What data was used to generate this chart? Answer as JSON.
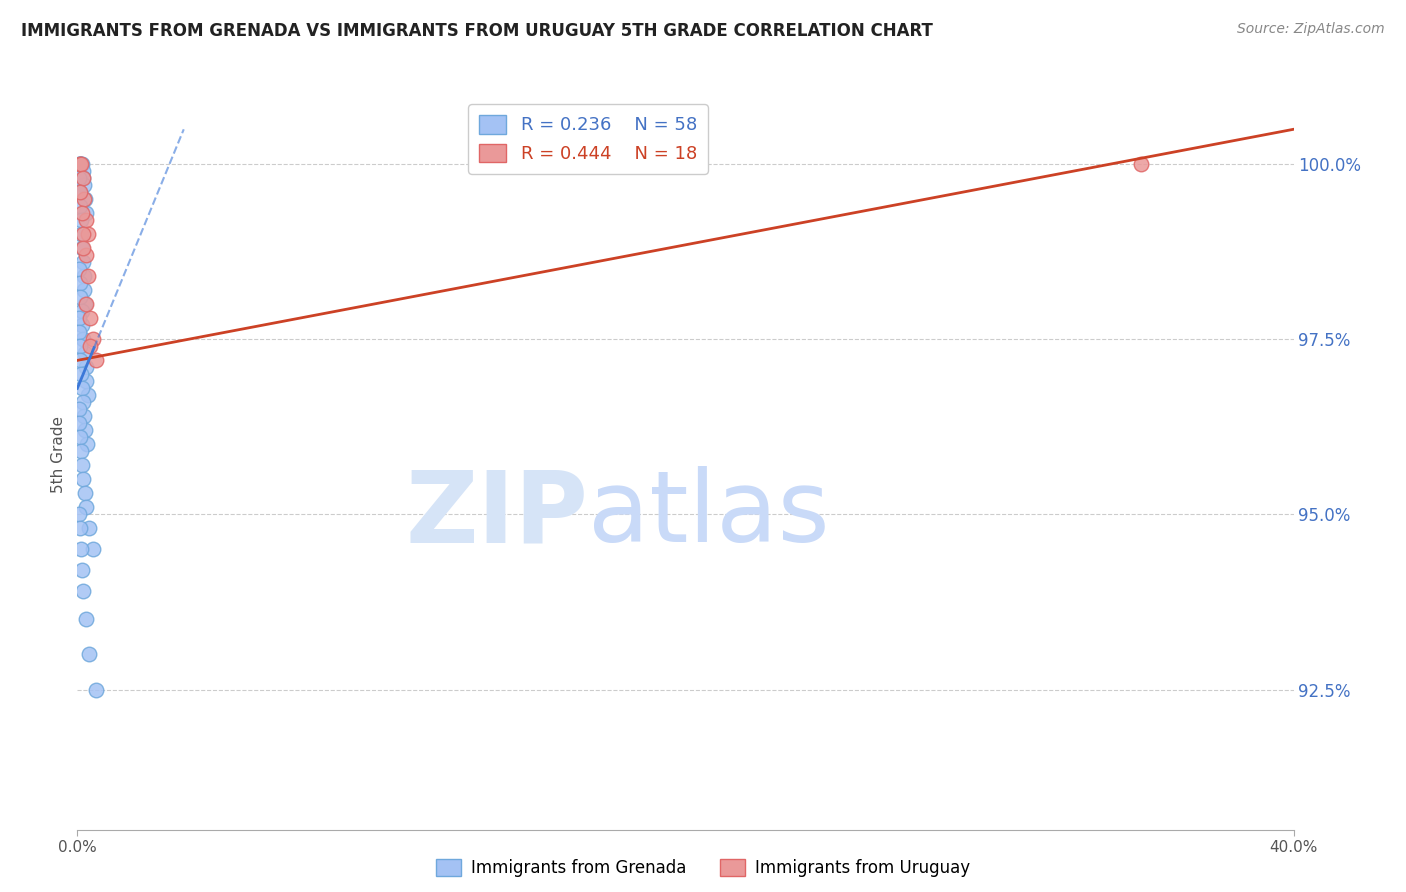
{
  "title": "IMMIGRANTS FROM GRENADA VS IMMIGRANTS FROM URUGUAY 5TH GRADE CORRELATION CHART",
  "source": "Source: ZipAtlas.com",
  "ylabel": "5th Grade",
  "yticks": [
    92.5,
    95.0,
    97.5,
    100.0
  ],
  "ytick_labels": [
    "92.5%",
    "95.0%",
    "97.5%",
    "100.0%"
  ],
  "xmin": 0.0,
  "xmax": 40.0,
  "ymin": 90.5,
  "ymax": 101.2,
  "r_blue": 0.236,
  "n_blue": 58,
  "r_pink": 0.444,
  "n_pink": 18,
  "blue_color": "#a4c2f4",
  "blue_edge_color": "#6fa8dc",
  "pink_color": "#ea9999",
  "pink_edge_color": "#e06666",
  "trend_blue_color": "#3c78d8",
  "trend_pink_color": "#cc4125",
  "watermark_zip_color": "#c9daf8",
  "watermark_atlas_color": "#a4c2f4",
  "blue_scatter_x": [
    0.05,
    0.08,
    0.1,
    0.12,
    0.15,
    0.18,
    0.2,
    0.22,
    0.25,
    0.28,
    0.05,
    0.07,
    0.09,
    0.11,
    0.13,
    0.16,
    0.19,
    0.21,
    0.23,
    0.26,
    0.06,
    0.08,
    0.1,
    0.14,
    0.17,
    0.2,
    0.24,
    0.27,
    0.3,
    0.35,
    0.05,
    0.06,
    0.08,
    0.1,
    0.12,
    0.15,
    0.18,
    0.22,
    0.26,
    0.32,
    0.05,
    0.07,
    0.09,
    0.12,
    0.16,
    0.2,
    0.25,
    0.3,
    0.38,
    0.5,
    0.05,
    0.08,
    0.11,
    0.15,
    0.2,
    0.28,
    0.4,
    0.6
  ],
  "blue_scatter_y": [
    100.0,
    100.0,
    100.0,
    100.0,
    100.0,
    99.9,
    99.8,
    99.7,
    99.5,
    99.3,
    99.8,
    99.6,
    99.4,
    99.2,
    99.0,
    98.8,
    98.6,
    98.4,
    98.2,
    98.0,
    98.5,
    98.3,
    98.1,
    97.9,
    97.7,
    97.5,
    97.3,
    97.1,
    96.9,
    96.7,
    97.8,
    97.6,
    97.4,
    97.2,
    97.0,
    96.8,
    96.6,
    96.4,
    96.2,
    96.0,
    96.5,
    96.3,
    96.1,
    95.9,
    95.7,
    95.5,
    95.3,
    95.1,
    94.8,
    94.5,
    95.0,
    94.8,
    94.5,
    94.2,
    93.9,
    93.5,
    93.0,
    92.5
  ],
  "pink_scatter_x": [
    0.08,
    0.12,
    0.18,
    0.22,
    0.28,
    0.35,
    0.08,
    0.15,
    0.2,
    0.28,
    0.35,
    0.42,
    0.5,
    0.6,
    0.18,
    0.28,
    0.42,
    35.0
  ],
  "pink_scatter_y": [
    100.0,
    100.0,
    99.8,
    99.5,
    99.2,
    99.0,
    99.6,
    99.3,
    99.0,
    98.7,
    98.4,
    97.8,
    97.5,
    97.2,
    98.8,
    98.0,
    97.4,
    100.0
  ],
  "blue_trend_x0": 0.0,
  "blue_trend_y0": 96.8,
  "blue_trend_x1": 3.5,
  "blue_trend_y1": 100.5,
  "pink_trend_x0": 0.0,
  "pink_trend_y0": 97.2,
  "pink_trend_x1": 40.0,
  "pink_trend_y1": 100.5
}
